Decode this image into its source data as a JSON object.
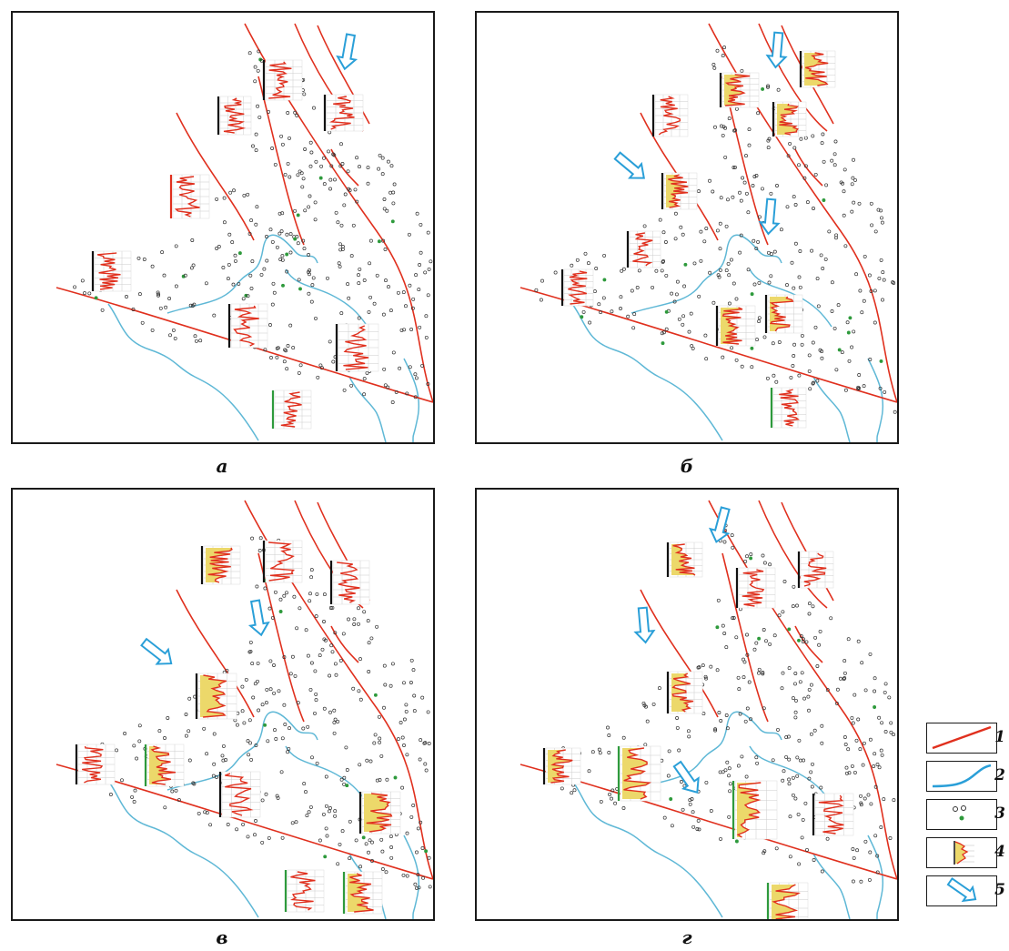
{
  "panels": [
    {
      "id": "a",
      "label": "а"
    },
    {
      "id": "b",
      "label": "б"
    },
    {
      "id": "v",
      "label": "в"
    },
    {
      "id": "g",
      "label": "г"
    }
  ],
  "legend": [
    {
      "number": "1",
      "symbol": "fault-line"
    },
    {
      "number": "2",
      "symbol": "coastline"
    },
    {
      "number": "3",
      "symbol": "wells"
    },
    {
      "number": "4",
      "symbol": "log-plot"
    },
    {
      "number": "5",
      "symbol": "flow-arrow"
    }
  ],
  "colors": {
    "fault": "#e0301e",
    "coast": "#5fb8d6",
    "arrow": "#2a9fd8",
    "log": "#e0301e",
    "fill": "#ecd86a",
    "well": "#333333",
    "well_green": "#2e9a3c"
  }
}
